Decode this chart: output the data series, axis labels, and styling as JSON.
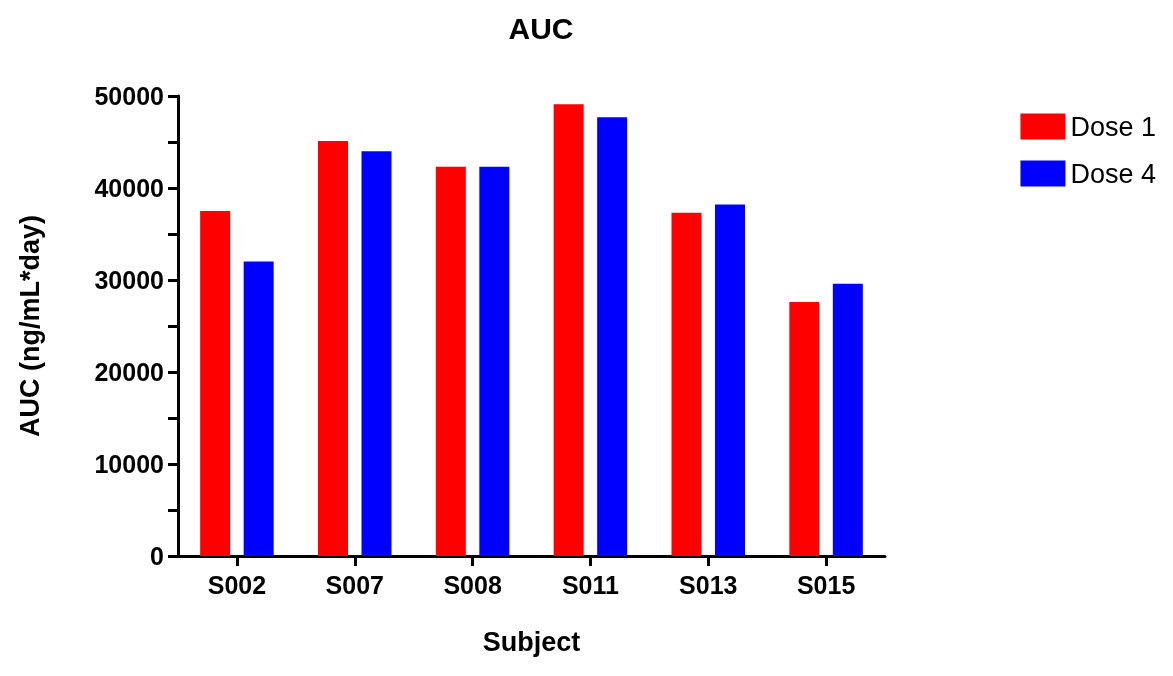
{
  "chart_data": {
    "type": "bar",
    "title": "AUC",
    "xlabel": "Subject",
    "ylabel": "AUC (ng/mL*day)",
    "categories": [
      "S002",
      "S007",
      "S008",
      "S011",
      "S013",
      "S015"
    ],
    "series": [
      {
        "name": "Dose 1",
        "color": "#ff0000",
        "values": [
          37500,
          45100,
          42300,
          49100,
          37300,
          27600
        ]
      },
      {
        "name": "Dose 4",
        "color": "#0000ff",
        "values": [
          32000,
          44000,
          42300,
          47700,
          38200,
          29600
        ]
      }
    ],
    "ylim": [
      0,
      50000
    ],
    "yticks": [
      0,
      {
        "value": 5000,
        "label": null
      },
      10000,
      {
        "value": 15000,
        "label": null
      },
      20000,
      {
        "value": 25000,
        "label": null
      },
      30000,
      {
        "value": 35000,
        "label": null
      },
      40000,
      {
        "value": 45000,
        "label": null
      },
      50000
    ],
    "grid": false,
    "legend": "top right"
  }
}
